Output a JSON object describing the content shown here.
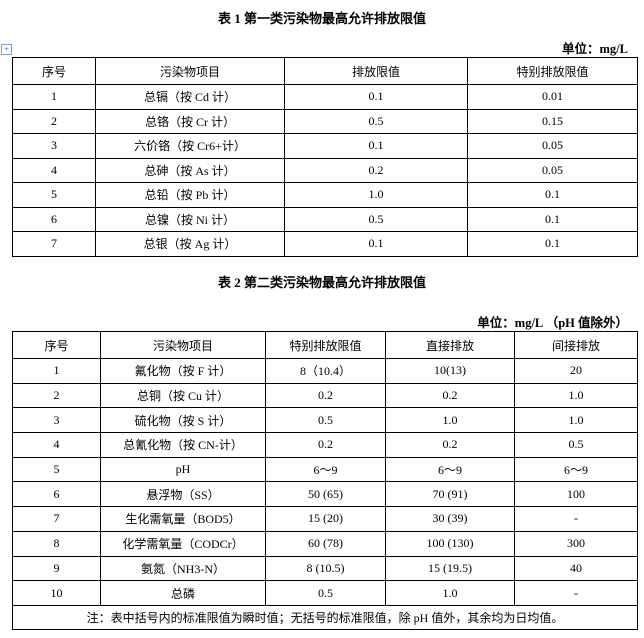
{
  "table1": {
    "title": "表 1  第一类污染物最高允许排放限值",
    "unit": "单位：mg/L",
    "headers": [
      "序号",
      "污染物项目",
      "排放限值",
      "特别排放限值"
    ],
    "rows": [
      [
        "1",
        "总镉（按 Cd 计）",
        "0.1",
        "0.01"
      ],
      [
        "2",
        "总铬（按 Cr 计）",
        "0.5",
        "0.15"
      ],
      [
        "3",
        "六价铬（按 Cr6+计）",
        "0.1",
        "0.05"
      ],
      [
        "4",
        "总砷（按 As 计）",
        "0.2",
        "0.05"
      ],
      [
        "5",
        "总铅（按 Pb 计）",
        "1.0",
        "0.1"
      ],
      [
        "6",
        "总镍（按 Ni 计）",
        "0.5",
        "0.1"
      ],
      [
        "7",
        "总银（按 Ag 计）",
        "0.1",
        "0.1"
      ]
    ]
  },
  "table2": {
    "title": "表 2  第二类污染物最高允许排放限值",
    "unit": "单位：mg/L （pH 值除外）",
    "headers": [
      "序号",
      "污染物项目",
      "特别排放限值",
      "直接排放",
      "间接排放"
    ],
    "rows": [
      [
        "1",
        "氟化物（按 F 计）",
        "8（10.4）",
        "10(13)",
        "20"
      ],
      [
        "2",
        "总铜（按 Cu 计）",
        "0.2",
        "0.2",
        "1.0"
      ],
      [
        "3",
        "硫化物（按 S 计）",
        "0.5",
        "1.0",
        "1.0"
      ],
      [
        "4",
        "总氰化物（按 CN-计）",
        "0.2",
        "0.2",
        "0.5"
      ],
      [
        "5",
        "pH",
        "6～9",
        "6～9",
        "6～9"
      ],
      [
        "6",
        "悬浮物（SS）",
        "50 (65)",
        "70 (91)",
        "100"
      ],
      [
        "7",
        "生化需氧量（BOD5）",
        "15 (20)",
        "30 (39)",
        "-"
      ],
      [
        "8",
        "化学需氧量（CODCr）",
        "60 (78)",
        "100 (130)",
        "300"
      ],
      [
        "9",
        "氨氮（NH3-N）",
        "8 (10.5)",
        "15 (19.5)",
        "40"
      ],
      [
        "10",
        "总磷",
        "0.5",
        "1.0",
        "-"
      ]
    ],
    "note": "注：表中括号内的标准限值为瞬时值；无括号的标准限值，除 pH 值外，其余均为日均值。"
  }
}
